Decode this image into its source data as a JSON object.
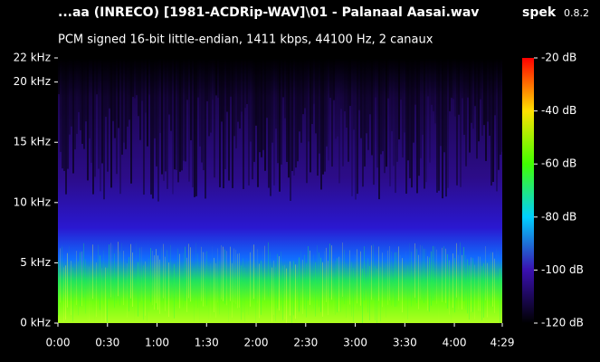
{
  "chart_data": {
    "type": "spectrogram",
    "title": "...aa (INRECO) [1981-ACDRip-WAV]\\01 - Palanaal Aasai.wav",
    "app_name": "spek",
    "app_version": "0.8.2",
    "subtitle": "PCM signed 16-bit little-endian, 1411 kbps, 44100 Hz, 2 canaux",
    "xlim": [
      0,
      269
    ],
    "xticks": [
      {
        "value": 0,
        "label": "0:00"
      },
      {
        "value": 30,
        "label": "0:30"
      },
      {
        "value": 60,
        "label": "1:00"
      },
      {
        "value": 90,
        "label": "1:30"
      },
      {
        "value": 120,
        "label": "2:00"
      },
      {
        "value": 150,
        "label": "2:30"
      },
      {
        "value": 180,
        "label": "3:00"
      },
      {
        "value": 210,
        "label": "3:30"
      },
      {
        "value": 240,
        "label": "4:00"
      },
      {
        "value": 269,
        "label": "4:29"
      }
    ],
    "ylim": [
      0,
      22
    ],
    "yticks": [
      {
        "value": 0,
        "label": "0 kHz"
      },
      {
        "value": 5,
        "label": "5 kHz"
      },
      {
        "value": 10,
        "label": "10 kHz"
      },
      {
        "value": 15,
        "label": "15 kHz"
      },
      {
        "value": 20,
        "label": "20 kHz"
      },
      {
        "value": 22,
        "label": "22 kHz"
      }
    ],
    "colorbar": {
      "lim": [
        -120,
        -20
      ],
      "ticks": [
        {
          "value": -20,
          "label": "-20 dB"
        },
        {
          "value": -40,
          "label": "-40 dB"
        },
        {
          "value": -60,
          "label": "-60 dB"
        },
        {
          "value": -80,
          "label": "-80 dB"
        },
        {
          "value": -100,
          "label": "-100 dB"
        },
        {
          "value": -120,
          "label": "-120 dB"
        }
      ],
      "colors": [
        "#ff0000",
        "#ffe000",
        "#40ff00",
        "#00d0ff",
        "#3a10b0",
        "#000000"
      ]
    }
  }
}
